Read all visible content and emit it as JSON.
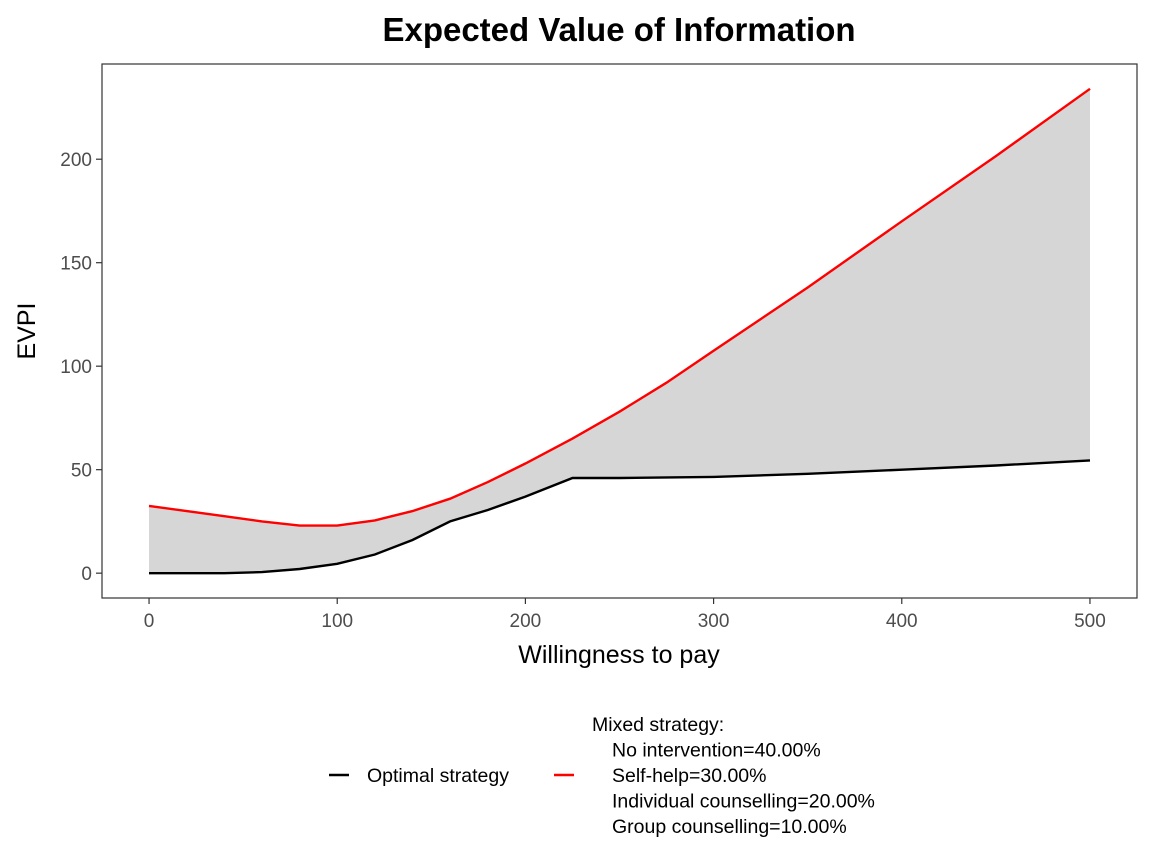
{
  "chart_data": {
    "type": "line",
    "title": "Expected Value of Information",
    "xlabel": "Willingness to pay",
    "ylabel": "EVPI",
    "xlim": [
      -25,
      525
    ],
    "ylim": [
      -12,
      246
    ],
    "x_ticks": [
      0,
      100,
      200,
      300,
      400,
      500
    ],
    "y_ticks": [
      0,
      50,
      100,
      150,
      200
    ],
    "grid": false,
    "legend_position": "bottom",
    "shaded_region_between_series": true,
    "series": [
      {
        "name": "Optimal strategy",
        "color": "#000000",
        "points": [
          [
            0,
            0
          ],
          [
            20,
            0
          ],
          [
            40,
            0
          ],
          [
            60,
            0.5
          ],
          [
            80,
            2
          ],
          [
            100,
            4.5
          ],
          [
            120,
            9
          ],
          [
            140,
            16
          ],
          [
            160,
            25
          ],
          [
            180,
            30.5
          ],
          [
            200,
            37
          ],
          [
            225,
            46
          ],
          [
            250,
            46
          ],
          [
            300,
            46.5
          ],
          [
            350,
            48
          ],
          [
            400,
            50
          ],
          [
            450,
            52
          ],
          [
            500,
            54.5
          ]
        ]
      },
      {
        "name": "Mixed strategy:\nNo intervention=40.00%\nSelf-help=30.00%\nIndividual counselling=20.00%\nGroup counselling=10.00%",
        "color": "#ff0000",
        "points": [
          [
            0,
            32.5
          ],
          [
            20,
            30
          ],
          [
            40,
            27.5
          ],
          [
            60,
            25
          ],
          [
            80,
            23
          ],
          [
            100,
            23
          ],
          [
            120,
            25.5
          ],
          [
            140,
            30
          ],
          [
            160,
            36
          ],
          [
            180,
            44
          ],
          [
            200,
            53
          ],
          [
            225,
            65
          ],
          [
            250,
            78
          ],
          [
            275,
            92
          ],
          [
            300,
            107.5
          ],
          [
            350,
            138
          ],
          [
            400,
            170
          ],
          [
            450,
            201.5
          ],
          [
            500,
            234
          ]
        ]
      }
    ]
  }
}
